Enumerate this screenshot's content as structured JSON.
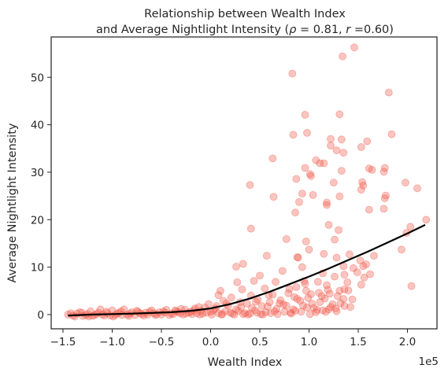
{
  "chart_data": {
    "type": "scatter",
    "title_line1": "Relationship between Wealth Index",
    "title_line2_prefix": "and Average Nightlight Intensity (",
    "title_rho_symbol": "ρ",
    "title_rho_value": " = 0.81, ",
    "title_r_symbol": "r",
    "title_r_value": " =0.60)",
    "xlabel": "Wealth Index",
    "ylabel": "Average Nightlight Intensity",
    "x_offset_label": "1e5",
    "xlim": [
      -1.62,
      2.3
    ],
    "ylim": [
      -3.0,
      58.5
    ],
    "x_ticks": [
      -1.5,
      -1.0,
      -0.5,
      0.0,
      0.5,
      1.0,
      1.5,
      2.0
    ],
    "x_tick_labels": [
      "−1.5",
      "−1.0",
      "−0.5",
      "0.0",
      "0.5",
      "1.0",
      "1.5",
      "2.0"
    ],
    "y_ticks": [
      0,
      10,
      20,
      30,
      40,
      50
    ],
    "y_tick_labels": [
      "0",
      "10",
      "20",
      "30",
      "40",
      "50"
    ],
    "grid": false,
    "colors": {
      "points": "#f05a4a",
      "trend": "#000000",
      "axis": "#262626"
    },
    "trend_line": {
      "x": [
        -1.45,
        -1.2,
        -1.0,
        -0.8,
        -0.6,
        -0.4,
        -0.2,
        0.0,
        0.2,
        0.4,
        0.6,
        0.8,
        1.0,
        1.2,
        1.4,
        1.6,
        1.8,
        2.0,
        2.18
      ],
      "y": [
        -0.2,
        0.0,
        0.1,
        0.2,
        0.35,
        0.5,
        0.8,
        1.3,
        2.2,
        3.4,
        4.8,
        6.4,
        8.0,
        9.7,
        11.5,
        13.3,
        15.2,
        17.1,
        18.9
      ]
    },
    "series": [
      {
        "points": [
          [
            0.83,
            50.8
          ],
          [
            1.34,
            54.4
          ],
          [
            1.46,
            56.3
          ],
          [
            1.81,
            46.8
          ],
          [
            0.96,
            42.1
          ],
          [
            1.31,
            42.2
          ],
          [
            0.84,
            37.9
          ],
          [
            0.98,
            38.3
          ],
          [
            1.22,
            37.0
          ],
          [
            1.33,
            36.9
          ],
          [
            1.59,
            36.5
          ],
          [
            1.53,
            35.3
          ],
          [
            1.84,
            38.0
          ],
          [
            1.22,
            35.6
          ],
          [
            1.28,
            34.6
          ],
          [
            1.35,
            34.1
          ],
          [
            1.07,
            32.5
          ],
          [
            0.63,
            32.9
          ],
          [
            0.96,
            30.9
          ],
          [
            1.11,
            31.9
          ],
          [
            1.15,
            31.9
          ],
          [
            1.33,
            30.3
          ],
          [
            1.61,
            30.8
          ],
          [
            1.64,
            30.5
          ],
          [
            1.77,
            30.9
          ],
          [
            1.76,
            30.1
          ],
          [
            1.01,
            29.6
          ],
          [
            1.02,
            29.2
          ],
          [
            0.87,
            28.6
          ],
          [
            1.25,
            27.8
          ],
          [
            1.54,
            27.9
          ],
          [
            1.55,
            27.2
          ],
          [
            1.98,
            27.8
          ],
          [
            0.4,
            27.3
          ],
          [
            2.1,
            26.6
          ],
          [
            0.64,
            24.8
          ],
          [
            0.93,
            25.5
          ],
          [
            1.04,
            25.2
          ],
          [
            1.18,
            23.6
          ],
          [
            1.31,
            24.9
          ],
          [
            1.18,
            23.1
          ],
          [
            0.9,
            23.7
          ],
          [
            1.53,
            26.3
          ],
          [
            1.78,
            25.1
          ],
          [
            1.77,
            24.5
          ],
          [
            0.86,
            21.5
          ],
          [
            1.61,
            22.1
          ],
          [
            1.76,
            22.3
          ],
          [
            0.41,
            18.1
          ],
          [
            1.2,
            18.9
          ],
          [
            1.3,
            17.8
          ],
          [
            1.99,
            17.2
          ],
          [
            2.03,
            18.5
          ],
          [
            2.19,
            20.0
          ],
          [
            0.77,
            15.9
          ],
          [
            0.97,
            15.4
          ],
          [
            1.26,
            15.8
          ],
          [
            1.94,
            13.7
          ],
          [
            0.57,
            12.4
          ],
          [
            1.0,
            13.7
          ],
          [
            1.15,
            12.8
          ],
          [
            1.28,
            12.0
          ],
          [
            1.41,
            12.7
          ],
          [
            1.52,
            11.4
          ],
          [
            0.88,
            12.1
          ],
          [
            0.89,
            12.0
          ],
          [
            0.26,
            10.1
          ],
          [
            0.33,
            10.7
          ],
          [
            1.35,
            10.2
          ],
          [
            1.55,
            10.2
          ],
          [
            0.93,
            10.0
          ],
          [
            1.62,
            8.5
          ],
          [
            0.5,
            8.2
          ],
          [
            0.73,
            9.2
          ],
          [
            1.14,
            8.7
          ],
          [
            1.36,
            8.4
          ],
          [
            1.45,
            9.8
          ],
          [
            1.56,
            7.8
          ],
          [
            0.27,
            6.8
          ],
          [
            0.44,
            7.1
          ],
          [
            0.66,
            6.9
          ],
          [
            0.96,
            6.5
          ],
          [
            1.09,
            6.9
          ],
          [
            1.36,
            5.3
          ],
          [
            1.4,
            5.1
          ],
          [
            1.53,
            6.3
          ],
          [
            2.04,
            6.0
          ],
          [
            0.1,
            5.0
          ],
          [
            0.32,
            5.3
          ],
          [
            0.55,
            5.5
          ],
          [
            0.8,
            5.4
          ],
          [
            0.97,
            5.0
          ],
          [
            1.19,
            5.2
          ],
          [
            1.31,
            5.0
          ],
          [
            0.08,
            4.1
          ],
          [
            0.21,
            3.6
          ],
          [
            0.41,
            4.0
          ],
          [
            0.63,
            4.2
          ],
          [
            0.85,
            3.7
          ],
          [
            1.02,
            4.3
          ],
          [
            1.16,
            3.4
          ],
          [
            1.29,
            3.9
          ],
          [
            0.13,
            2.9
          ],
          [
            0.3,
            2.6
          ],
          [
            0.48,
            3.1
          ],
          [
            0.7,
            2.4
          ],
          [
            0.91,
            2.9
          ],
          [
            1.11,
            2.6
          ],
          [
            1.24,
            2.2
          ],
          [
            1.36,
            1.8
          ],
          [
            -0.02,
            2.2
          ],
          [
            0.18,
            1.9
          ],
          [
            0.37,
            2.3
          ],
          [
            0.58,
            1.7
          ],
          [
            0.77,
            1.9
          ],
          [
            0.98,
            1.5
          ],
          [
            1.2,
            1.1
          ],
          [
            -0.12,
            1.6
          ],
          [
            0.05,
            1.3
          ],
          [
            0.26,
            1.1
          ],
          [
            0.45,
            0.9
          ],
          [
            0.67,
            1.2
          ],
          [
            0.86,
            0.8
          ],
          [
            1.07,
            0.5
          ],
          [
            1.28,
            0.7
          ],
          [
            -0.3,
            1.2
          ],
          [
            -0.17,
            0.9
          ],
          [
            0.0,
            0.6
          ],
          [
            0.2,
            0.4
          ],
          [
            0.4,
            0.2
          ],
          [
            0.61,
            0.3
          ],
          [
            0.82,
            0.2
          ],
          [
            1.01,
            0.1
          ],
          [
            -0.45,
            1.0
          ],
          [
            -0.35,
            0.7
          ],
          [
            -0.22,
            0.4
          ],
          [
            -0.08,
            0.2
          ],
          [
            0.12,
            0.1
          ],
          [
            0.33,
            0.1
          ],
          [
            0.53,
            0.0
          ],
          [
            -0.6,
            0.9
          ],
          [
            -0.52,
            0.5
          ],
          [
            -0.4,
            0.2
          ],
          [
            -0.28,
            0.0
          ],
          [
            -0.75,
            0.8
          ],
          [
            -0.66,
            0.4
          ],
          [
            -0.55,
            0.1
          ],
          [
            -0.88,
            1.1
          ],
          [
            -0.8,
            0.5
          ],
          [
            -0.7,
            0.1
          ],
          [
            -1.0,
            0.9
          ],
          [
            -0.93,
            0.4
          ],
          [
            -0.85,
            0.0
          ],
          [
            -1.12,
            1.1
          ],
          [
            -1.05,
            0.3
          ],
          [
            -0.97,
            -0.1
          ],
          [
            -1.22,
            0.7
          ],
          [
            -1.16,
            0.1
          ],
          [
            -1.08,
            -0.2
          ],
          [
            -1.33,
            0.5
          ],
          [
            -1.27,
            -0.1
          ],
          [
            -1.2,
            -0.3
          ],
          [
            -1.45,
            0.0
          ],
          [
            -1.4,
            -0.2
          ],
          [
            -1.36,
            0.2
          ],
          [
            -1.3,
            -0.3
          ],
          [
            -1.25,
            0.1
          ],
          [
            -1.18,
            -0.1
          ],
          [
            -1.1,
            0.0
          ],
          [
            -1.02,
            -0.2
          ],
          [
            -0.95,
            0.2
          ],
          [
            -0.9,
            -0.1
          ],
          [
            -0.82,
            0.2
          ],
          [
            -0.77,
            -0.1
          ],
          [
            -0.72,
            0.3
          ],
          [
            -0.64,
            0.0
          ],
          [
            -0.58,
            0.3
          ],
          [
            -0.5,
            0.0
          ],
          [
            -0.46,
            0.4
          ],
          [
            -0.38,
            0.1
          ],
          [
            -0.33,
            0.5
          ],
          [
            -0.25,
            0.2
          ],
          [
            -0.2,
            0.6
          ],
          [
            -0.14,
            0.3
          ],
          [
            -0.1,
            0.8
          ],
          [
            -0.04,
            0.4
          ],
          [
            0.03,
            0.9
          ],
          [
            0.08,
            0.3
          ],
          [
            0.15,
            0.7
          ],
          [
            0.22,
            0.2
          ],
          [
            0.28,
            0.8
          ],
          [
            0.35,
            0.3
          ],
          [
            0.42,
            1.4
          ],
          [
            0.47,
            0.4
          ],
          [
            0.52,
            1.8
          ],
          [
            0.56,
            0.5
          ],
          [
            0.6,
            2.6
          ],
          [
            0.65,
            0.7
          ],
          [
            0.71,
            3.0
          ],
          [
            0.75,
            0.6
          ],
          [
            0.79,
            4.5
          ],
          [
            0.84,
            1.1
          ],
          [
            0.88,
            3.3
          ],
          [
            0.92,
            0.6
          ],
          [
            0.95,
            7.1
          ],
          [
            1.05,
            1.4
          ],
          [
            1.1,
            4.6
          ],
          [
            1.14,
            0.9
          ],
          [
            1.18,
            6.2
          ],
          [
            1.22,
            1.6
          ],
          [
            1.26,
            8.0
          ],
          [
            1.32,
            2.4
          ],
          [
            1.39,
            6.8
          ],
          [
            1.44,
            3.2
          ],
          [
            1.49,
            8.9
          ],
          [
            1.58,
            10.6
          ],
          [
            1.66,
            12.4
          ],
          [
            -1.42,
            0.3
          ],
          [
            -1.38,
            -0.4
          ],
          [
            -1.31,
            0.4
          ],
          [
            -1.24,
            -0.4
          ],
          [
            -1.14,
            0.4
          ],
          [
            -1.06,
            0.6
          ],
          [
            -0.99,
            -0.4
          ],
          [
            -0.91,
            0.7
          ],
          [
            -0.83,
            -0.3
          ],
          [
            -0.74,
            0.6
          ],
          [
            -0.68,
            -0.2
          ],
          [
            -0.62,
            0.6
          ],
          [
            -0.56,
            -0.1
          ],
          [
            -0.48,
            0.7
          ],
          [
            -0.42,
            -0.1
          ],
          [
            -0.36,
            0.9
          ],
          [
            -0.31,
            0.3
          ],
          [
            -0.26,
            1.0
          ],
          [
            -0.19,
            0.1
          ],
          [
            -0.16,
            1.3
          ],
          [
            -0.11,
            0.0
          ],
          [
            -0.06,
            1.5
          ],
          [
            0.01,
            0.0
          ],
          [
            0.06,
            1.8
          ],
          [
            0.11,
            0.0
          ],
          [
            0.16,
            2.3
          ],
          [
            0.24,
            0.0
          ],
          [
            0.31,
            1.6
          ],
          [
            0.38,
            0.0
          ],
          [
            0.46,
            2.7
          ],
          [
            0.51,
            0.1
          ],
          [
            0.59,
            4.1
          ],
          [
            0.68,
            0.1
          ],
          [
            0.74,
            2.1
          ],
          [
            0.81,
            0.4
          ],
          [
            0.87,
            5.8
          ],
          [
            0.94,
            1.9
          ],
          [
            0.99,
            3.5
          ],
          [
            1.03,
            2.3
          ],
          [
            1.08,
            1.0
          ],
          [
            1.13,
            3.9
          ],
          [
            1.17,
            0.6
          ],
          [
            1.21,
            4.4
          ],
          [
            1.27,
            1.3
          ],
          [
            1.35,
            3.3
          ],
          [
            1.42,
            1.6
          ]
        ]
      }
    ]
  }
}
